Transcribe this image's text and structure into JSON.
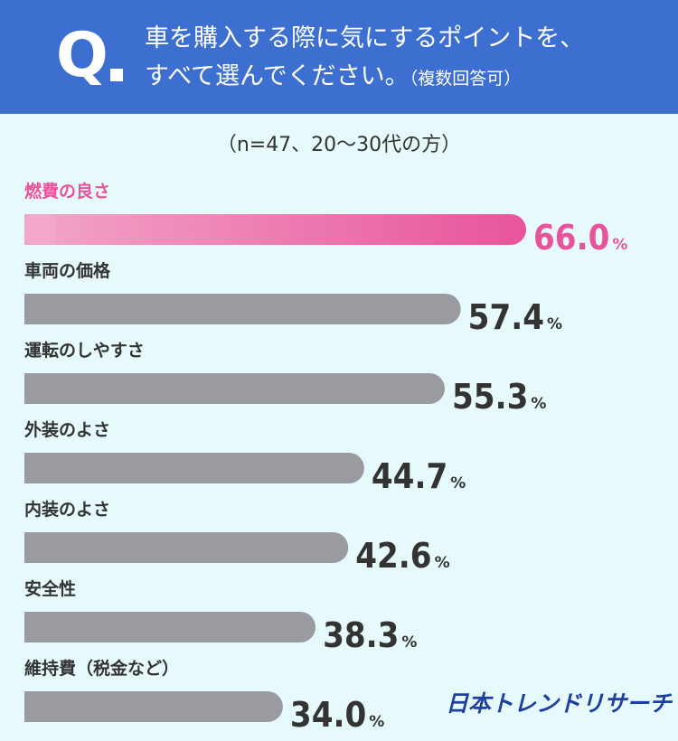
{
  "question": {
    "mark": "Q",
    "line1": "車を購入する際に気にするポイントを、",
    "line2": "すべて選んでください。",
    "note": "（複数回答可）"
  },
  "sample_note": "（n=47、20〜30代の方）",
  "logo_text": "日本トレンドリサーチ",
  "colors": {
    "header": "#3d6fd1",
    "background": "#e6f9fb",
    "highlight_start": "#f2a6c8",
    "highlight_end": "#e8549c",
    "bar_default": "#9a9ba0",
    "label_default": "#333333",
    "highlight_text": "#e8549c"
  },
  "chart_data": {
    "type": "bar",
    "orientation": "horizontal",
    "unit": "%",
    "categories": [
      "燃費の良さ",
      "車両の価格",
      "運転のしやすさ",
      "外装のよさ",
      "内装のよさ",
      "安全性",
      "維持費（税金など）"
    ],
    "values": [
      66.0,
      57.4,
      55.3,
      44.7,
      42.6,
      38.3,
      34.0
    ],
    "value_labels": [
      "66.0",
      "57.4",
      "55.3",
      "44.7",
      "42.6",
      "38.3",
      "34.0"
    ],
    "highlight_index": 0,
    "title": "",
    "xlabel": "",
    "ylabel": "",
    "xlim": [
      0,
      66.0
    ],
    "grid": false,
    "legend": "none"
  }
}
